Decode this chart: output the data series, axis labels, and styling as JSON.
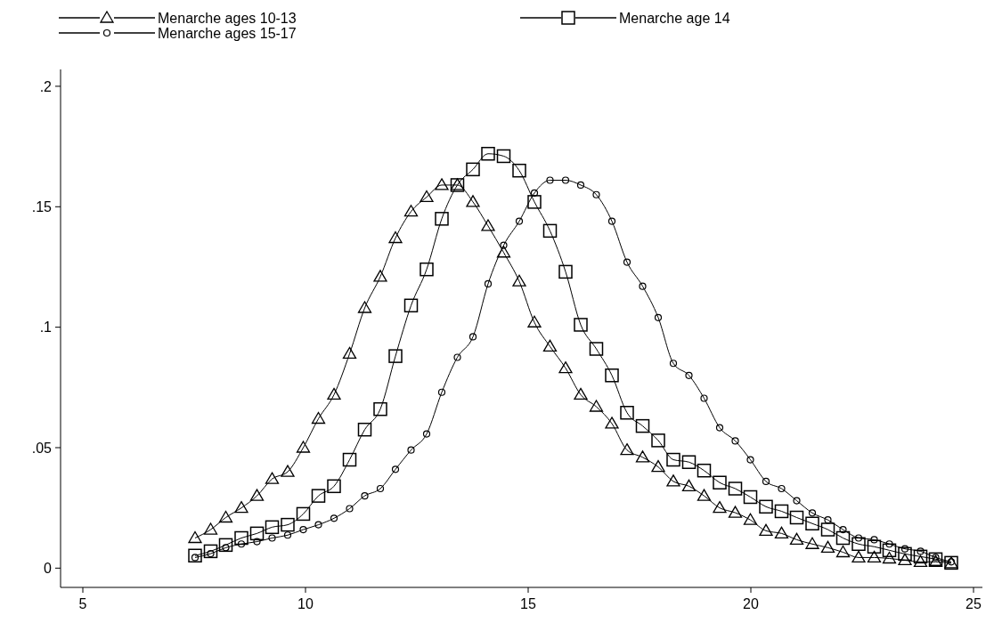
{
  "chart_data": {
    "type": "line",
    "x": [
      7.52,
      7.87,
      8.21,
      8.56,
      8.91,
      9.25,
      9.6,
      9.95,
      10.29,
      10.64,
      10.99,
      11.33,
      11.68,
      12.02,
      12.37,
      12.72,
      13.06,
      13.41,
      13.76,
      14.1,
      14.45,
      14.8,
      15.14,
      15.49,
      15.84,
      16.18,
      16.53,
      16.88,
      17.22,
      17.57,
      17.92,
      18.26,
      18.61,
      18.95,
      19.3,
      19.65,
      19.99,
      20.34,
      20.69,
      21.03,
      21.38,
      21.73,
      22.07,
      22.42,
      22.77,
      23.11,
      23.46,
      23.81,
      24.15,
      24.5
    ],
    "series": [
      {
        "name": "Menarche ages 10-13",
        "color": "#000000",
        "marker": "triangle",
        "values": [
          0.0125,
          0.016,
          0.021,
          0.025,
          0.03,
          0.037,
          0.04,
          0.05,
          0.062,
          0.072,
          0.089,
          0.108,
          0.121,
          0.137,
          0.148,
          0.154,
          0.159,
          0.159,
          0.152,
          0.142,
          0.131,
          0.119,
          0.102,
          0.092,
          0.083,
          0.072,
          0.067,
          0.06,
          0.049,
          0.046,
          0.042,
          0.036,
          0.034,
          0.03,
          0.025,
          0.023,
          0.02,
          0.0155,
          0.0144,
          0.0118,
          0.01,
          0.0085,
          0.0066,
          0.0044,
          0.0044,
          0.004,
          0.0033,
          0.0026,
          0.0026,
          0.002
        ]
      },
      {
        "name": "Menarche age 14",
        "color": "#000000",
        "marker": "square",
        "values": [
          0.0052,
          0.007,
          0.0096,
          0.0125,
          0.0144,
          0.017,
          0.018,
          0.0225,
          0.03,
          0.034,
          0.045,
          0.0575,
          0.066,
          0.088,
          0.109,
          0.124,
          0.145,
          0.159,
          0.1655,
          0.172,
          0.171,
          0.165,
          0.152,
          0.14,
          0.123,
          0.101,
          0.091,
          0.08,
          0.0645,
          0.059,
          0.053,
          0.045,
          0.044,
          0.0405,
          0.0355,
          0.033,
          0.0295,
          0.0255,
          0.0236,
          0.021,
          0.0185,
          0.016,
          0.0125,
          0.01,
          0.0089,
          0.0074,
          0.0059,
          0.0048,
          0.0037,
          0.0022
        ]
      },
      {
        "name": "Menarche ages 15-17",
        "color": "#000000",
        "marker": "circle",
        "values": [
          0.0044,
          0.006,
          0.0085,
          0.01,
          0.011,
          0.0125,
          0.0137,
          0.016,
          0.018,
          0.0207,
          0.0247,
          0.03,
          0.033,
          0.041,
          0.049,
          0.0557,
          0.073,
          0.0875,
          0.096,
          0.118,
          0.134,
          0.144,
          0.1557,
          0.161,
          0.161,
          0.159,
          0.155,
          0.144,
          0.127,
          0.117,
          0.104,
          0.085,
          0.08,
          0.0705,
          0.0583,
          0.0528,
          0.045,
          0.036,
          0.033,
          0.028,
          0.0229,
          0.02,
          0.016,
          0.0125,
          0.0118,
          0.01,
          0.008,
          0.007,
          0.0044,
          0.0026
        ]
      }
    ],
    "xlim": [
      4.5,
      25.2
    ],
    "xticks": [
      5,
      10,
      15,
      20,
      25
    ],
    "ylim": [
      -0.008,
      0.207
    ],
    "yticks": [
      0,
      {
        "value": 0.05,
        "label": ".05"
      },
      {
        "value": 0.1,
        "label": ".1"
      },
      {
        "value": 0.15,
        "label": ".15"
      },
      {
        "value": 0.2,
        "label": ".2"
      }
    ],
    "legend": "top",
    "line_style": "solid"
  }
}
